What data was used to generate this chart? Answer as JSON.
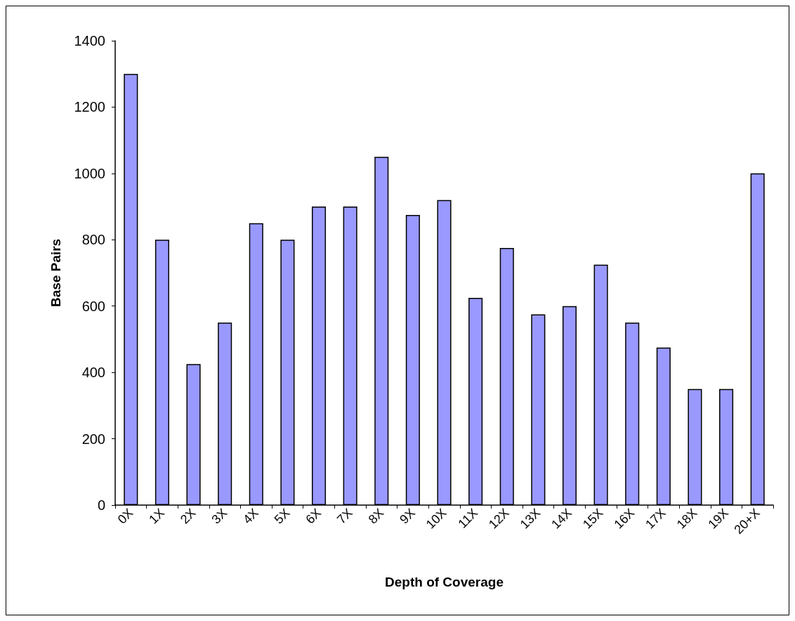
{
  "chart_data": {
    "type": "bar",
    "xlabel": "Depth of Coverage",
    "ylabel": "Base Pairs",
    "categories": [
      "0X",
      "1X",
      "2X",
      "3X",
      "4X",
      "5X",
      "6X",
      "7X",
      "8X",
      "9X",
      "10X",
      "11X",
      "12X",
      "13X",
      "14X",
      "15X",
      "16X",
      "17X",
      "18X",
      "19X",
      "20+X"
    ],
    "values": [
      1300,
      800,
      425,
      550,
      850,
      800,
      900,
      900,
      1050,
      875,
      920,
      625,
      775,
      575,
      600,
      725,
      550,
      475,
      350,
      350,
      1000
    ],
    "color": "#9999ff",
    "ylim": [
      0,
      1400
    ],
    "yticks": [
      0,
      200,
      400,
      600,
      800,
      1000,
      1200,
      1400
    ],
    "grid": false
  }
}
